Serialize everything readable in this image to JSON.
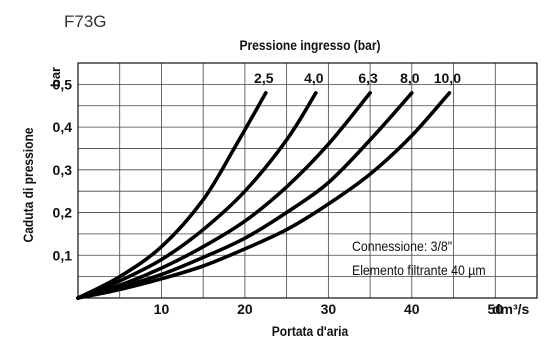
{
  "chart_data": {
    "type": "line",
    "model": "F73G",
    "title": "Pressione ingresso (bar)",
    "xlabel": "Portata d'aria",
    "ylabel": "Caduta di pressione",
    "x_unit": "dm³/s",
    "y_unit": "bar",
    "xlim": [
      0,
      55
    ],
    "ylim": [
      0,
      0.55
    ],
    "x_ticks": [
      10,
      20,
      30,
      40,
      50
    ],
    "y_ticks": [
      0.1,
      0.2,
      0.3,
      0.4,
      0.5
    ],
    "x_tick_labels": [
      "10",
      "20",
      "30",
      "40",
      "50"
    ],
    "y_tick_labels": [
      "0,1",
      "0,2",
      "0,3",
      "0,4",
      "0,5"
    ],
    "grid": true,
    "series": [
      {
        "name": "2,5",
        "x": [
          0,
          5,
          10,
          15,
          19,
          22.5
        ],
        "y": [
          0,
          0.05,
          0.12,
          0.23,
          0.36,
          0.48
        ]
      },
      {
        "name": "4,0",
        "x": [
          0,
          5,
          10,
          15,
          20,
          25,
          28.5
        ],
        "y": [
          0,
          0.04,
          0.09,
          0.16,
          0.25,
          0.37,
          0.48
        ]
      },
      {
        "name": "6,3",
        "x": [
          0,
          5,
          10,
          15,
          20,
          25,
          30,
          35
        ],
        "y": [
          0,
          0.03,
          0.07,
          0.12,
          0.18,
          0.26,
          0.36,
          0.48
        ]
      },
      {
        "name": "8,0",
        "x": [
          0,
          5,
          10,
          15,
          20,
          25,
          30,
          35,
          40
        ],
        "y": [
          0,
          0.025,
          0.055,
          0.095,
          0.14,
          0.2,
          0.27,
          0.37,
          0.48
        ]
      },
      {
        "name": "10,0",
        "x": [
          0,
          5,
          10,
          15,
          20,
          25,
          30,
          35,
          40,
          44.5
        ],
        "y": [
          0,
          0.02,
          0.045,
          0.075,
          0.115,
          0.16,
          0.22,
          0.29,
          0.38,
          0.48
        ]
      }
    ],
    "annotations": [
      "Connessione: 3/8\"",
      "Elemento filtrante 40 µm"
    ]
  }
}
